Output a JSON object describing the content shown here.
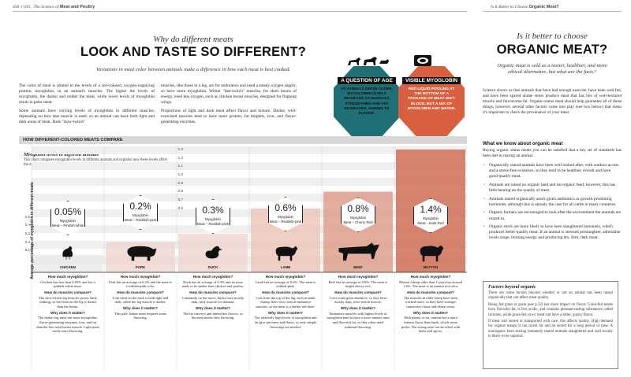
{
  "header": {
    "left": "034 // 035",
    "left_section": "The Science of ",
    "left_section_bold": "Meat and Poultry",
    "right": "Is It Better to Choose ",
    "right_bold": "Organic Meat?"
  },
  "left_page": {
    "kicker": "Why do different meats",
    "title": "LOOK AND TASTE SO DIFFERENT?",
    "lede": "Variations in meat color between animals make a difference in how each meat is best cooked.",
    "col1": [
      "The color of meat is related to the levels of a red-colored, oxygen-supplying protein, myoglobin, in an animal's muscles. The higher the levels of myoglobin, the darker and redder the meat, while lower levels of myoglobin result in paler meat.",
      "Some animals have varying levels of myoglobin in different muscles, depending on how that muscle is used, so an animal can have both light and dark areas of meat. Dark \"slow-twitch\""
    ],
    "col2": [
      "muscles, like those in a leg, are for endurance and need a steady oxygen supply, so have more myoglobin. Whiter \"fast-twitch\" muscles, for short bursts of energy, need less oxygen, such as chicken breast muscles, designed for flapping wings.",
      "Proportions of light and dark meat affect flavor and texture. Darker, well-exercised muscles tend to have more protein, fat droplets, iron, and flavor-generating enzymes."
    ],
    "badge_age": {
      "title": "A QUESTION OF AGE",
      "text": "AS ANIMALS GROW OLDER, MYOGLOBIN LEVELS INCREASE AS MUSCLES STRENGTHEN AND FAT INCREASES, ADDING TO FLAVOR."
    },
    "badge_myo": {
      "title": "VISIBLE MYOGLOBIN",
      "text": "RED LIQUID POOLING AT THE BOTTOM OF A PACKAGE OF MEAT ISN'T BLOOD, BUT A MIX OF MYOGLOBIN AND WATER."
    }
  },
  "chart_section": {
    "bar_title": "HOW DIFFERENT-COLORED MEATS COMPARE",
    "sub_title": "Myoglobin levels in different animals",
    "sub_text": "This chart compares myoglobin levels in different animals and explains how these levels affect the meat, with higher levels intensifying flavor and lower levels creating a blander-tasting meat."
  },
  "chart_data": {
    "type": "bar",
    "ylabel": "Average percentage of myoglobin in different meats",
    "ylim": [
      0,
      1.3
    ],
    "yticks": [
      "1.3",
      "1.2",
      "1.1",
      "1.0",
      "0.9",
      "0.8",
      "0.7",
      "0.6",
      "0.5",
      "0.4",
      "0.3",
      "0.2",
      "0.1"
    ],
    "categories": [
      "CHICKEN",
      "PORK",
      "DUCK",
      "LAMB",
      "BEEF",
      "MUTTON"
    ],
    "values": [
      0.05,
      0.2,
      0.3,
      0.6,
      0.8,
      1.4
    ],
    "value_labels": [
      "0.05%",
      "0.2%",
      "0.3%",
      "0.6%",
      "0.8%",
      "1.4%"
    ],
    "series_label": "Myoglobin",
    "meat_colors": [
      "Meat – Pinkish-white",
      "Meat – Reddish-pink",
      "Meat – Reddish-pink",
      "Meat – Reddish-pink",
      "Meat – Cherry Red",
      "Meat – Dark Red"
    ],
    "bar_colors": [
      "#e9e9e9",
      "#efd6cf",
      "#efd6cf",
      "#ecc4b8",
      "#dd9a87",
      "#cf6f55"
    ]
  },
  "animals": [
    {
      "name": "CHICKEN",
      "myo": "Chicken has less than 0.05% and has a pinkish-white meat.",
      "compare": "The slow-twitch leg muscles power daily walking, so the flesh on the leg is darker than the breast.",
      "matter": "The darker leg meat has more myoglobin, flavor-generating enzymes, iron, and fat than the less-used breast muscle. Light meat needs extra flavoring."
    },
    {
      "name": "PORK",
      "myo": "Pork has an average of 0.2% and the meat is a reddish-pink color.",
      "compare": "Loin meat on the back is both light and dark, while the leg muscle is darker.",
      "matter": "This pale, leaner meat requires some flavoring."
    },
    {
      "name": "DUCK",
      "myo": "Duck has an average of 0.3% and its meat tends to be darker than chicken and poultry.",
      "compare": "Constantly on the move, ducks have mostly dark, fatty muscle for stamina.",
      "matter": "The fat conveys and intensifies flavors, so the meat needs little flavoring."
    },
    {
      "name": "LAMB",
      "myo": "Lamb has an average of 0.6%. The meat is reddish-pink.",
      "compare": "Cuts from the top of the leg, such as lamb chump, have slow-twitch endurance muscles, so the meat is a darker red there.",
      "matter": "The relatively high levels of myoglobin and fat give juiciness and flavor, so only simple flavorings are needed."
    },
    {
      "name": "BEEF",
      "myo": "Beef has an average of 0.8%. The meat is bright cherry-red.",
      "compare": "Cows roam great distances, so they have mostly dark, slow-twitch muscle.",
      "matter": "Endurance muscles with higher levels of myoglobin tend to have a more intense taste and flavorful fat, so they often need minimal flavoring."
    },
    {
      "name": "MUTTON",
      "myo": "Mutton (sheep older than 1 year) has around 1.4%. The meat is an intense red color.",
      "compare": "The muscles in older sheep have been worked more, so they have stronger connective tissue and denser meat.",
      "matter": "With plenty of fat, mutton has a more intense flavor than lamb, which some prefer. The strong taste can be offset with herbs and spices."
    }
  ],
  "qa_labels": {
    "q1": "How much myoglobin?",
    "q2": "How do muscles compare?",
    "q3": "Why does it matter?"
  },
  "right_page": {
    "kicker": "Is it better to choose",
    "title": "ORGANIC MEAT?",
    "lede": "Organic meat is sold as a tastier, healthier, and more ethical alternative, but what are the facts?",
    "intro": "Science shows us that animals that have had enough exercise, have been well fed, and have been spared undue stress produce meat that has lots of well-textured muscle and flavorsome fat. Organic-status meat should help guarantee all of these things; however, several other factors come into play (see box below) that mean it's important to check the provenance of your meat.",
    "subhead": "What we know about organic meat",
    "subintro": "Buying organic status meats you can be satisfied that a key set of standards has been met in rearing an animal.",
    "bullets": [
      "Organically reared animals have been well looked after, with outdoor access and a stress-free existence, so they tend to be healthier overall and have good-quality meat.",
      "Animals are raised on organic land and eat organic feed; however, this has little bearing on the quality of meat.",
      "Animals reared organically aren't given antibiotics or growth-promoting hormones, although this is already the case for all cattle in many countries.",
      "Organic farmers are encouraged to look after the environment the animals are reared in.",
      "Organic stock are more likely to have been slaughtered humanely, which produces better-quality meat. If an animal is stressed preslaughter, adrenaline levels surge, burning energy and producing dry, firm, dark meat."
    ],
    "box_title": "Factors beyond organic",
    "box_text": [
      "There are some factors beyond whether or not an animal has been raised organically that can affect meat quality.",
      "Being fed grass or grain (see p.32) has more impact on flavor. Grain-fed meats have flavorful fat, is less acidic, and contains pleasant-tasting substances called lactones, while grass-fed cows' meat can have a bitter, grassy flavor.",
      "If meat isn't stored or transported with care, this affects quality. High demand for organic means it can travel far and be stored for a long period of time. A nonorganic farm rearing humanely reared animals slaughtered and sold locally is likely to be superior."
    ]
  }
}
